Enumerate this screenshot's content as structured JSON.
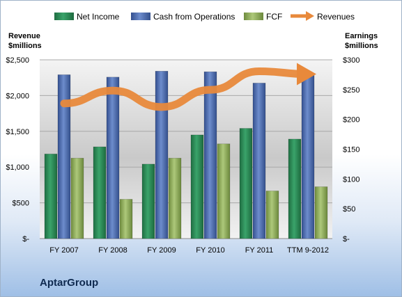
{
  "chart_data": {
    "type": "bar",
    "categories": [
      "FY 2007",
      "FY 2008",
      "FY 2009",
      "FY 2010",
      "FY 2011",
      "TTM 9-2012"
    ],
    "series": [
      {
        "name": "Net Income",
        "axis": "right",
        "values": [
          142,
          154,
          125,
          174,
          185,
          167
        ],
        "color": "#2e8b57"
      },
      {
        "name": "Cash from Operations",
        "axis": "right",
        "values": [
          275,
          271,
          281,
          280,
          261,
          275
        ],
        "color": "#4f6fb3"
      },
      {
        "name": "FCF",
        "axis": "right",
        "values": [
          135,
          66,
          135,
          159,
          80,
          87
        ],
        "color": "#8fae5b"
      },
      {
        "name": "Revenues",
        "axis": "left",
        "type": "line",
        "values": [
          1890,
          2070,
          1840,
          2080,
          2340,
          2300
        ],
        "color": "#e8893b"
      }
    ],
    "y_left": {
      "label_line1": "Revenue",
      "label_line2": "$millions",
      "range": [
        0,
        2500
      ],
      "ticks": [
        "$-",
        "$500",
        "$1,000",
        "$1,500",
        "$2,000",
        "$2,500"
      ]
    },
    "y_right": {
      "label_line1": "Earnings",
      "label_line2": "$millions",
      "range": [
        0,
        300
      ],
      "ticks": [
        "$-",
        "$50",
        "$100",
        "$150",
        "$200",
        "$250",
        "$300"
      ]
    },
    "grid": true,
    "legend": "top"
  },
  "company": "AptarGroup"
}
